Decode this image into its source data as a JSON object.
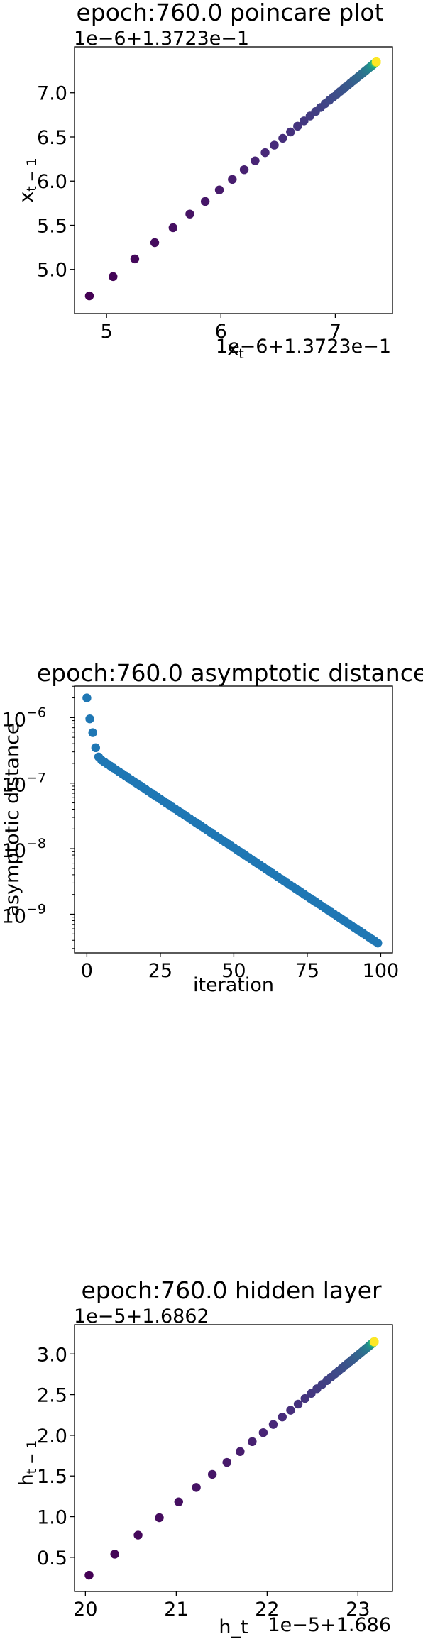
{
  "chart_data": [
    {
      "type": "scatter",
      "title": "epoch:760.0 poincare plot",
      "xlabel": "x_t",
      "ylabel": "x_{t-1}",
      "x_offset_label": "1e−6+1.3723e−1",
      "y_offset_label": "1e−6+1.3723e−1",
      "xlim": [
        4.72,
        7.5
      ],
      "ylim": [
        4.5,
        7.52
      ],
      "xticks": [
        5,
        6,
        7
      ],
      "xtick_labels": [
        "5",
        "6",
        "7"
      ],
      "yticks": [
        5.0,
        5.5,
        6.0,
        6.5,
        7.0
      ],
      "ytick_labels": [
        "5.0",
        "5.5",
        "6.0",
        "6.5",
        "7.0"
      ],
      "x_scale": "linear",
      "y_scale": "linear",
      "grid": false,
      "colormap": "viridis",
      "points": {
        "first_x": 4.85,
        "first_y": 4.7,
        "last_x": 7.36,
        "last_y": 7.35,
        "ratio": 0.9175,
        "count": 100
      }
    },
    {
      "type": "scatter",
      "title": "epoch:760.0 asymptotic distance",
      "xlabel": "iteration",
      "ylabel": "asymptotic distance",
      "xlim": [
        -4.2,
        104
      ],
      "ylim_log10": [
        -9.59,
        -5.52
      ],
      "xticks": [
        0,
        25,
        50,
        75,
        100
      ],
      "xtick_labels": [
        "0",
        "25",
        "50",
        "75",
        "100"
      ],
      "yticks_log10": [
        -6,
        -7,
        -8,
        -9
      ],
      "ytick_labels": [
        "10",
        "10",
        "10",
        "10"
      ],
      "ytick_exponents": [
        "−6",
        "−7",
        "−8",
        "−9"
      ],
      "x_scale": "linear",
      "y_scale": "log",
      "grid": false,
      "color": "#1f77b4",
      "initial_log10": [
        -5.7,
        -6.02,
        -6.23,
        -6.46,
        -6.6,
        -6.65
      ],
      "decay": {
        "from_iteration": 5,
        "start_log10": -6.65,
        "end_log10": -9.44,
        "end_iteration": 99
      }
    },
    {
      "type": "scatter",
      "title": "epoch:760.0 hidden layer",
      "xlabel": "h_t",
      "ylabel": "h_{t-1}",
      "x_offset_label": "1e−5+1.686",
      "y_offset_label": "1e−5+1.6862",
      "xlim": [
        19.88,
        23.38
      ],
      "ylim": [
        0.08,
        3.36
      ],
      "xticks": [
        20,
        21,
        22,
        23
      ],
      "xtick_labels": [
        "20",
        "21",
        "22",
        "23"
      ],
      "yticks": [
        0.5,
        1.0,
        1.5,
        2.0,
        2.5,
        3.0
      ],
      "ytick_labels": [
        "0.5",
        "1.0",
        "1.5",
        "2.0",
        "2.5",
        "3.0"
      ],
      "x_scale": "linear",
      "y_scale": "linear",
      "grid": false,
      "colormap": "viridis",
      "points": {
        "first_x": 20.04,
        "first_y": 0.28,
        "last_x": 23.18,
        "last_y": 3.15,
        "ratio": 0.91,
        "count": 100
      }
    }
  ]
}
